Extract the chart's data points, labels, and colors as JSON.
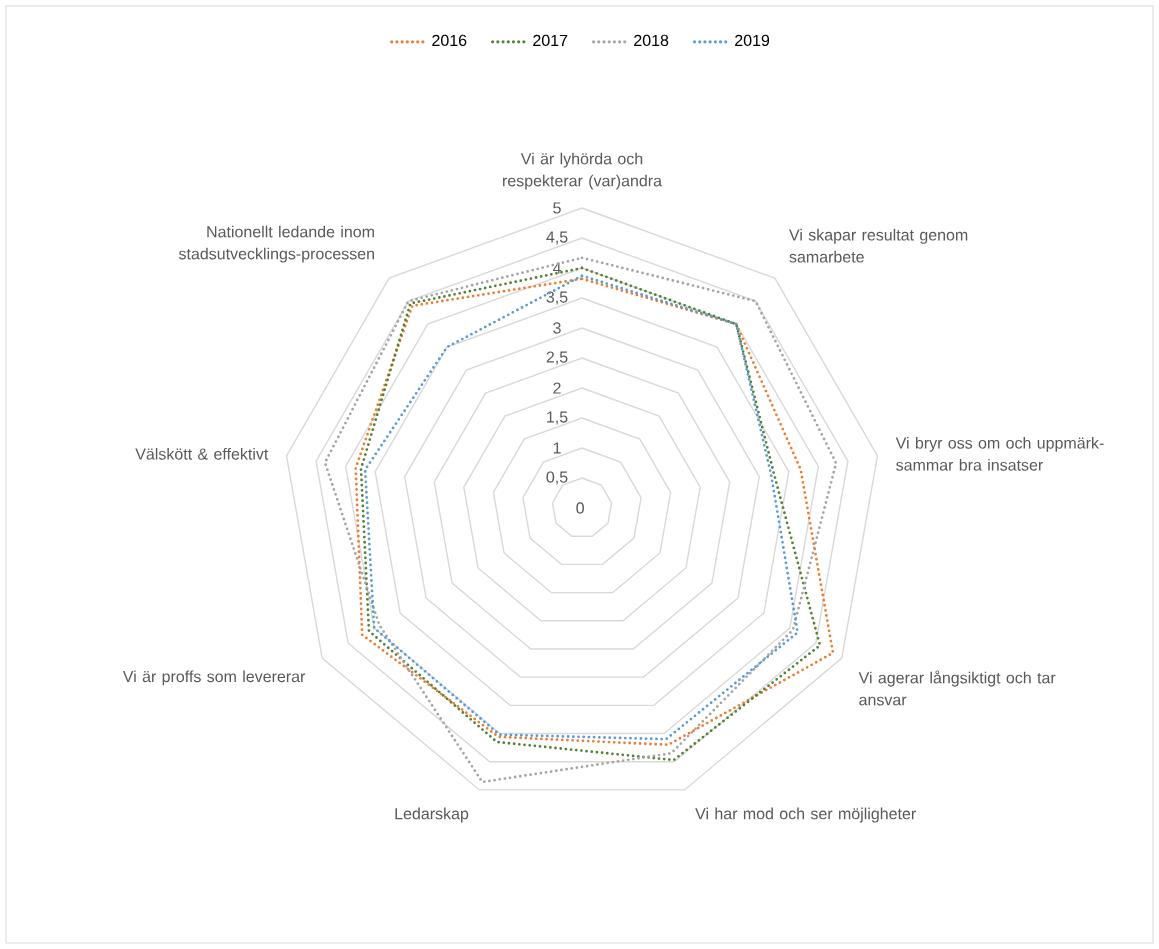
{
  "chart_data": {
    "type": "radar",
    "categories": [
      "Vi är lyhörda och respekterar (var)andra",
      "Vi skapar resultat genom samarbete",
      "Vi bryr oss om och uppmärk-sammar bra insatser",
      "Vi agerar långsiktigt och tar ansvar",
      "Vi har mod och ser möjligheter",
      "Ledarskap",
      "Vi är proffs som levererar",
      "Välskött & effektivt",
      "Nationellt ledande inom stadsutvecklings-processen"
    ],
    "series": [
      {
        "name": "2016",
        "color": "#ed7d31",
        "values": [
          3.82,
          4.0,
          3.7,
          4.83,
          4.2,
          4.06,
          4.23,
          3.83,
          4.4
        ]
      },
      {
        "name": "2017",
        "color": "#548235",
        "values": [
          4.0,
          4.0,
          3.25,
          4.58,
          4.47,
          4.15,
          4.1,
          3.74,
          4.45
        ]
      },
      {
        "name": "2018",
        "color": "#a5a5a5",
        "values": [
          4.17,
          4.5,
          4.3,
          4.06,
          4.35,
          4.86,
          3.9,
          4.35,
          4.5
        ]
      },
      {
        "name": "2019",
        "color": "#5b9bd5",
        "values": [
          3.87,
          4.0,
          3.2,
          4.15,
          4.1,
          4.02,
          4.0,
          3.67,
          3.5
        ]
      }
    ],
    "ylim": [
      0,
      5
    ],
    "yticks": [
      0,
      {
        "value": 0.5,
        "label": "0,5"
      },
      1,
      {
        "value": 1.5,
        "label": "1,5"
      },
      2,
      {
        "value": 2.5,
        "label": "2,5"
      },
      3,
      {
        "value": 3.5,
        "label": "3,5"
      },
      4,
      {
        "value": 4.5,
        "label": "4,5"
      },
      5
    ],
    "grid": true,
    "legend": "top",
    "marker": "none",
    "line_style": "dotted"
  }
}
